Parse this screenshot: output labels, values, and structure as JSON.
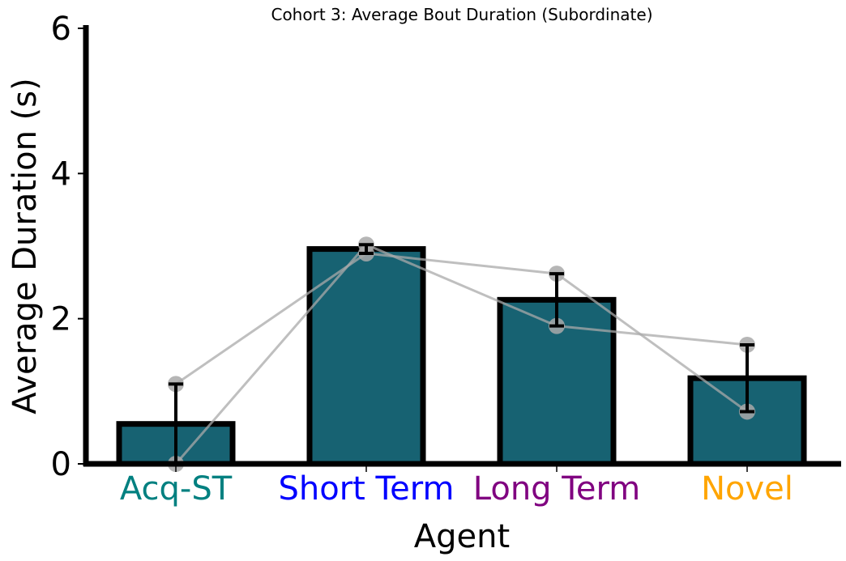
{
  "chart_data": {
    "type": "bar",
    "title": "Cohort 3: Average Bout Duration (Subordinate)",
    "xlabel": "Agent",
    "ylabel": "Average Duration (s)",
    "ylim": [
      0,
      6
    ],
    "yticks": [
      "0",
      "2",
      "4",
      "6"
    ],
    "categories": [
      "Acq-ST",
      "Short Term",
      "Long Term",
      "Novel"
    ],
    "category_colors": [
      "#008080",
      "#0000ff",
      "#800080",
      "#ffa500"
    ],
    "bar_color": "#176272",
    "bar_edge_color": "#000000",
    "values": [
      0.55,
      2.96,
      2.26,
      1.18
    ],
    "error_bars": [
      {
        "low": 0.0,
        "high": 1.1
      },
      {
        "low": 2.9,
        "high": 3.02
      },
      {
        "low": 1.9,
        "high": 2.62
      },
      {
        "low": 0.72,
        "high": 1.64
      }
    ],
    "subject_lines": [
      {
        "values": [
          1.1,
          2.9,
          2.62,
          0.72
        ]
      },
      {
        "values": [
          0.0,
          3.02,
          1.9,
          1.64
        ]
      }
    ],
    "subject_color": "#a9a9a9",
    "grid": false
  }
}
